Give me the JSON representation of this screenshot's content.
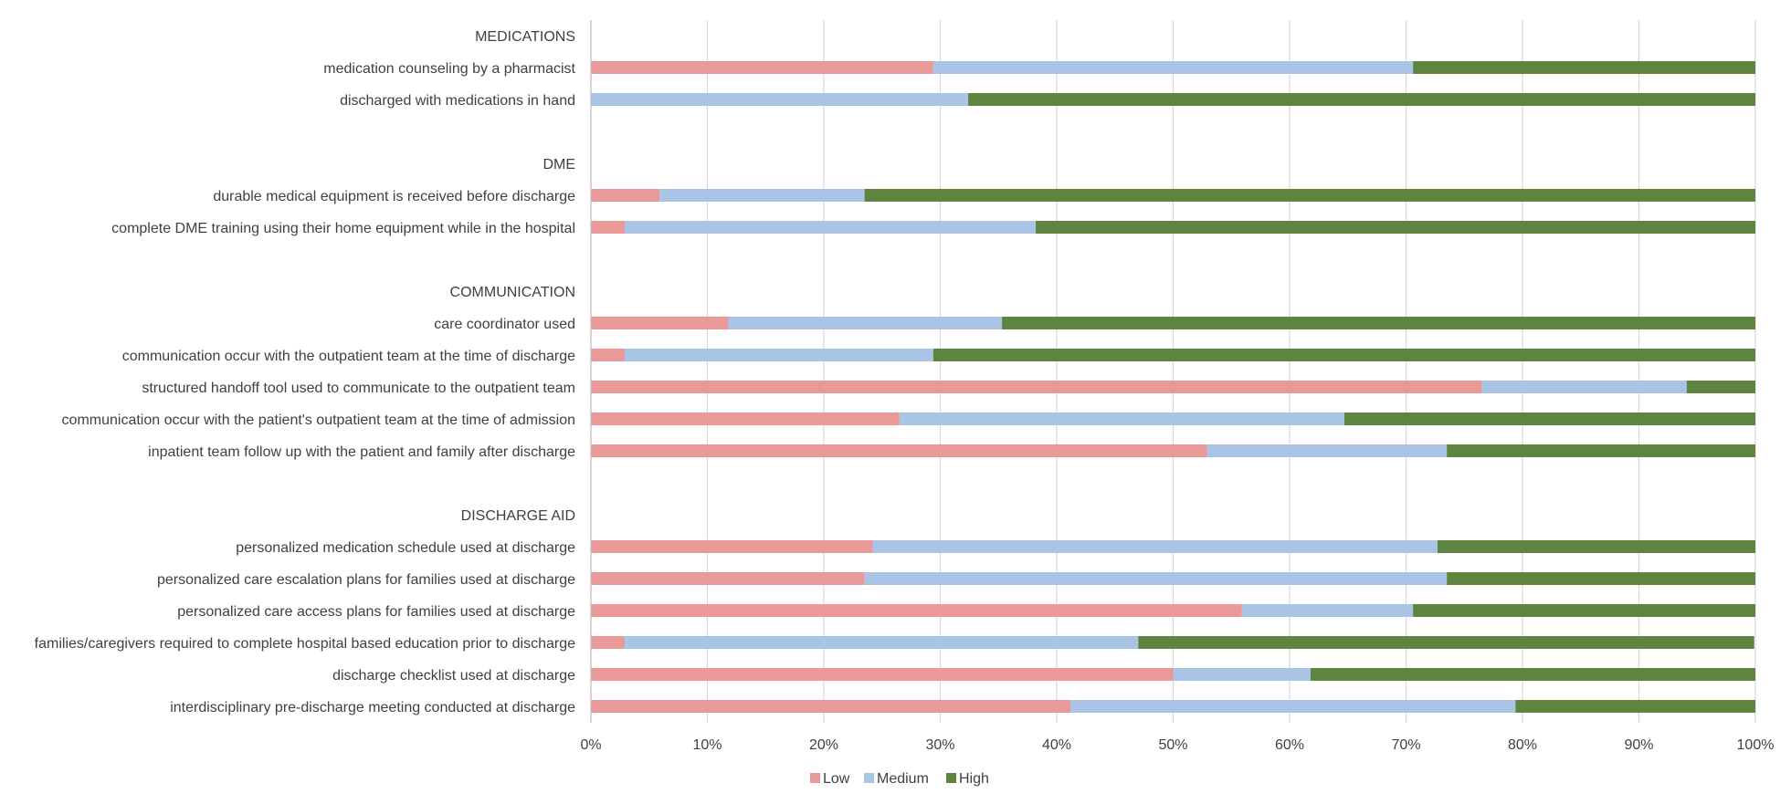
{
  "chart_data": {
    "type": "bar",
    "orientation": "horizontal",
    "stacked": "percent",
    "title": "",
    "xlabel": "",
    "ylabel": "",
    "xlim": [
      0,
      100
    ],
    "x_ticks": [
      "0%",
      "10%",
      "20%",
      "30%",
      "40%",
      "50%",
      "60%",
      "70%",
      "80%",
      "90%",
      "100%"
    ],
    "grid": "vertical",
    "legend_position": "bottom",
    "categories": [
      "MEDICATIONS",
      "medication counseling by a pharmacist",
      "discharged with medications in hand",
      "",
      "DME",
      "durable medical equipment is received before discharge",
      "complete DME training using their home equipment while in the hospital",
      "",
      "COMMUNICATION",
      "care coordinator used",
      "communication occur with the outpatient team at the time of discharge",
      "structured handoff tool used to communicate to the outpatient team",
      "communication occur with the patient's outpatient team at the time of admission",
      "inpatient team follow up with the patient and family after discharge",
      "",
      "DISCHARGE AID",
      "personalized medication schedule used at discharge",
      "personalized care escalation plans for families used at discharge",
      "personalized care access plans for families  used at discharge",
      "families/caregivers required to complete hospital based education prior to discharge",
      "discharge checklist used at discharge",
      "interdisciplinary pre-discharge meeting conducted at discharge"
    ],
    "series": [
      {
        "name": "Low",
        "color": "#ea9999",
        "values": [
          null,
          29.4,
          0,
          null,
          null,
          5.9,
          2.9,
          null,
          null,
          11.8,
          2.9,
          76.5,
          26.5,
          52.9,
          null,
          null,
          24.2,
          23.5,
          55.9,
          2.9,
          50.0,
          41.2
        ]
      },
      {
        "name": "Medium",
        "color": "#a9c4e4",
        "values": [
          null,
          41.2,
          32.4,
          null,
          null,
          17.6,
          35.3,
          null,
          null,
          23.5,
          26.5,
          17.6,
          38.2,
          20.6,
          null,
          null,
          48.5,
          50.0,
          14.7,
          44.1,
          11.8,
          38.2
        ]
      },
      {
        "name": "High",
        "color": "#5f8440",
        "values": [
          null,
          29.4,
          67.6,
          null,
          null,
          76.5,
          61.8,
          null,
          null,
          64.7,
          70.6,
          5.9,
          35.3,
          26.5,
          null,
          null,
          27.3,
          26.5,
          29.4,
          52.9,
          38.2,
          20.6
        ]
      }
    ]
  }
}
